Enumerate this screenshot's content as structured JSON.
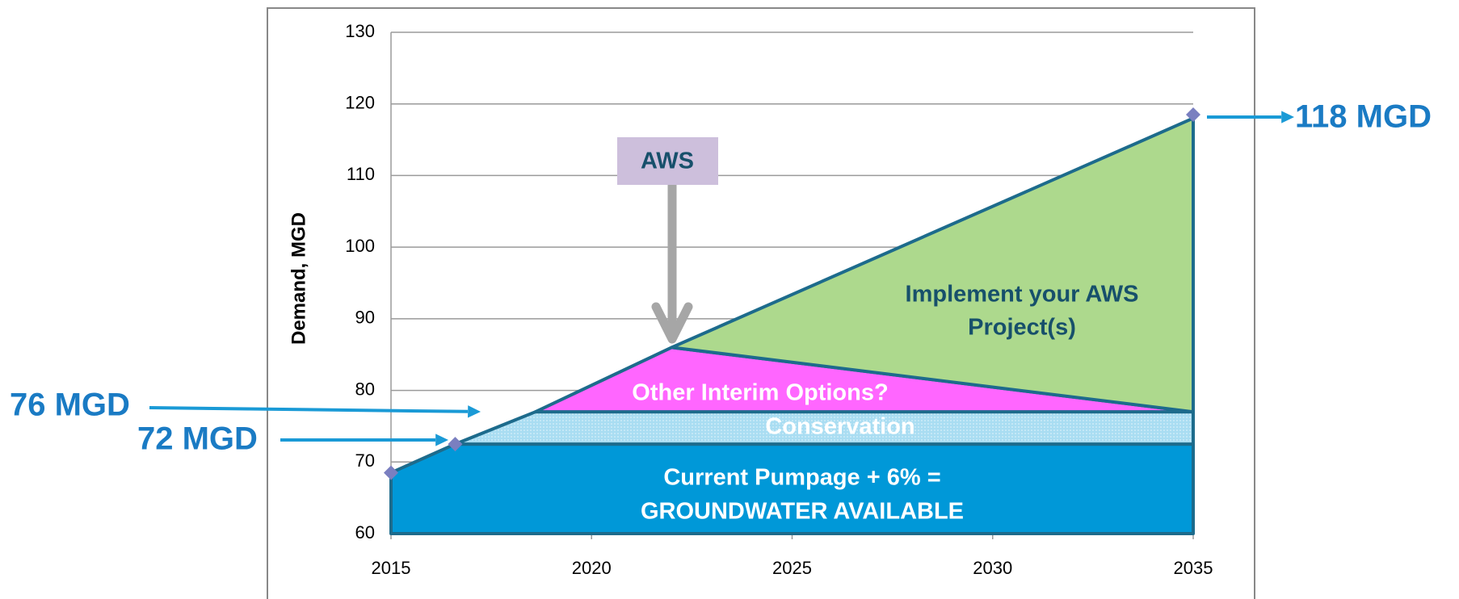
{
  "chart_data": {
    "type": "area",
    "ylabel": "Demand, MGD",
    "xlim": [
      2015,
      2035
    ],
    "ylim": [
      60,
      130
    ],
    "xticks": [
      2015,
      2020,
      2025,
      2030,
      2035
    ],
    "yticks": [
      60,
      70,
      80,
      90,
      100,
      110,
      120,
      130
    ],
    "grid": true,
    "regions": [
      {
        "label": [
          "Current Pumpage + 6% =",
          "GROUNDWATER AVAILABLE"
        ],
        "color": "#0098d8",
        "x": [
          2015,
          2015,
          2016.6,
          2035,
          2035
        ],
        "y": [
          60,
          68.5,
          72.5,
          72.5,
          60
        ]
      },
      {
        "label": [
          "Conservation"
        ],
        "color": "#a9ddf2",
        "x": [
          2016.6,
          2018.6,
          2035,
          2035
        ],
        "y": [
          72.5,
          77,
          77,
          72.5
        ]
      },
      {
        "label": [
          "Other Interim Options?"
        ],
        "color": "#ff66ff",
        "x": [
          2018.6,
          2022,
          2035
        ],
        "y": [
          77,
          86,
          77
        ]
      },
      {
        "label": [
          "Implement your AWS",
          "Project(s)"
        ],
        "color": "#add98d",
        "x": [
          2022,
          2035,
          2035
        ],
        "y": [
          86,
          118,
          77
        ]
      }
    ],
    "markers": {
      "color": "#7a7fc0",
      "x": [
        2015,
        2016.6,
        2035
      ],
      "y": [
        68.5,
        72.5,
        118.5
      ]
    },
    "annotations": [
      "76 MGD",
      "72 MGD",
      "118 MGD",
      "AWS"
    ]
  }
}
